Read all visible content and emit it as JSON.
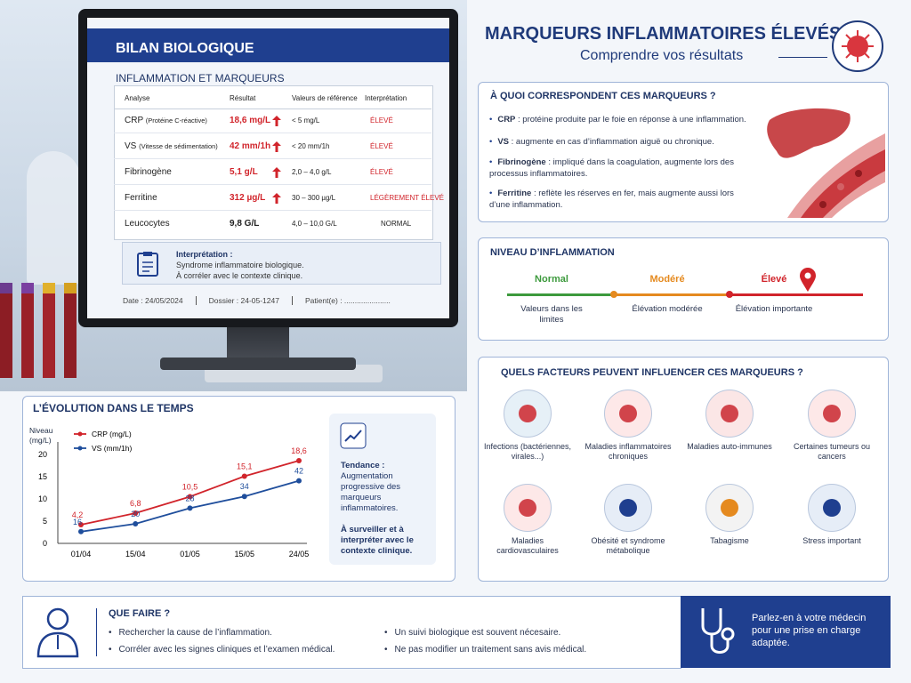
{
  "header": {
    "title": "MARQUEURS INFLAMMATOIRES ÉLEVÉS",
    "subtitle": "Comprendre vos résultats"
  },
  "report": {
    "title": "BILAN BIOLOGIQUE",
    "section": "INFLAMMATION ET MARQUEURS",
    "table": {
      "columns": [
        "Analyse",
        "Résultat",
        "Valeurs de référence",
        "Interprétation"
      ],
      "rows": [
        {
          "name": "CRP",
          "detail": "(Protéine C-réactive)",
          "result": "18,6 mg/L",
          "reference": "< 5 mg/L",
          "interpretation": "ÉLEVÉ"
        },
        {
          "name": "VS",
          "detail": "(Vitesse de sédimentation)",
          "result": "42 mm/1h",
          "reference": "< 20 mm/1h",
          "interpretation": "ÉLEVÉ"
        },
        {
          "name": "Fibrinogène",
          "result": "5,1 g/L",
          "reference": "2,0 – 4,0 g/L",
          "interpretation": "ÉLEVÉ"
        },
        {
          "name": "Ferritine",
          "result": "312 µg/L",
          "reference": "30 – 300 µg/L",
          "interpretation": "LÉGÈREMENT ÉLEVÉ"
        },
        {
          "name": "Leucocytes",
          "result": "9,8 G/L",
          "reference": "4,0 – 10,0 G/L",
          "interpretation": "NORMAL"
        }
      ]
    },
    "interpretation": {
      "label": "Interprétation :",
      "lines": [
        "Syndrome inflammatoire biologique.",
        "À corréler avec le contexte clinique."
      ]
    },
    "footer": [
      "Date : 24/05/2024",
      "Dossier : 24-05-1247",
      "Patient(e) : ......................"
    ]
  },
  "markers": {
    "title": "À QUOI CORRESPONDENT CES MARQUEURS ?",
    "items": [
      {
        "term": "CRP",
        "text": ": protéine produite par le foie en réponse à une inflammation."
      },
      {
        "term": "VS",
        "text": ": augmente en cas d’inflammation aiguë ou chronique."
      },
      {
        "term": "Fibrinogène",
        "text": ": impliqué dans la coagulation, augmente lors des processus inflammatoires."
      },
      {
        "term": "Ferritine",
        "text": ": reflète les réserves en fer, mais augmente aussi lors d’une inflammation."
      }
    ]
  },
  "level": {
    "title": "NIVEAU D’INFLAMMATION",
    "levels": [
      {
        "name": "Normal",
        "description": "Valeurs dans les limites"
      },
      {
        "name": "Modéré",
        "description": "Élévation modérée"
      },
      {
        "name": "Élevé",
        "description": "Élévation importante"
      }
    ]
  },
  "factors": {
    "title": "QUELS FACTEURS PEUVENT INFLUENCER CES MARQUEURS ?",
    "items": [
      "Infections (bactériennes, virales...)",
      "Maladies inflammatoires chroniques",
      "Maladies auto-immunes",
      "Certaines tumeurs ou cancers",
      "Maladies cardiovasculaires",
      "Obésité et syndrome métabolique",
      "Tabagisme",
      "Stress important"
    ]
  },
  "chart_data": {
    "type": "line",
    "title": "L’ÉVOLUTION DANS LE TEMPS",
    "y_label": "Niveau (mg/L)",
    "categories": [
      "01/04",
      "15/04",
      "01/05",
      "15/05",
      "24/05"
    ],
    "series": [
      {
        "name": "CRP (mg/L)",
        "color": "#d1242b",
        "values": [
          4.2,
          6.8,
          10.5,
          15.1,
          18.6
        ],
        "value_labels": [
          "4,2",
          "6,8",
          "10,5",
          "15,1",
          "18,6"
        ]
      },
      {
        "name": "VS (mm/1h)",
        "color": "#1f4e9c",
        "axis": "y2",
        "values": [
          16,
          20,
          28,
          34,
          42
        ]
      }
    ],
    "ylim": [
      0,
      22
    ],
    "yticks": [
      0,
      5,
      10,
      15,
      20
    ],
    "y2lim": [
      10,
      60
    ],
    "grid": false
  },
  "trend": {
    "label": "Tendance :",
    "text": "Augmentation progressive des marqueurs inflammatoires.",
    "note": "À surveiller et à interpréter avec le contexte clinique."
  },
  "actions": {
    "title": "QUE FAIRE ?",
    "items": [
      "Rechercher la cause de l’inflammation.",
      "Corréler avec les signes cliniques et l’examen médical.",
      "Un suivi biologique est souvent nécesaire.",
      "Ne pas modifier un traitement sans avis médical."
    ]
  },
  "cta": "Parlez-en à votre médecin pour une prise en charge adaptée."
}
